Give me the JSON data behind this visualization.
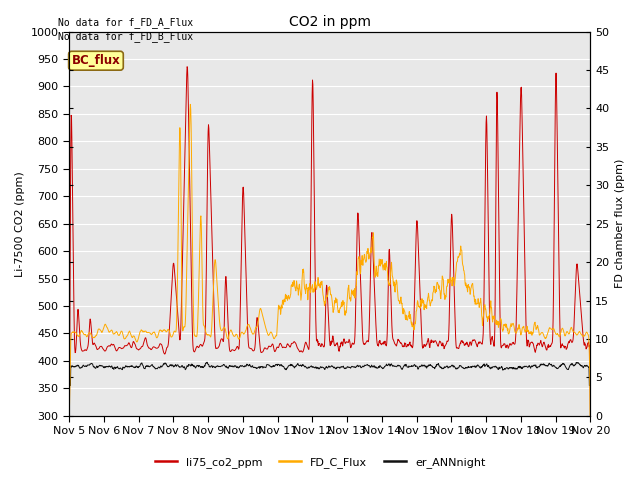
{
  "title": "CO2 in ppm",
  "ylabel_left": "Li-7500 CO2 (ppm)",
  "ylabel_right": "FD chamber flux (ppm)",
  "ylim_left": [
    300,
    1000
  ],
  "ylim_right": [
    0,
    50
  ],
  "background_color": "#e8e8e8",
  "grid_color": "white",
  "note1": "No data for f_FD_A_Flux",
  "note2": "No data for f_FD_B_Flux",
  "bc_flux_label": "BC_flux",
  "legend_entries": [
    "li75_co2_ppm",
    "FD_C_Flux",
    "er_ANNnight"
  ],
  "line_colors": [
    "#cc0000",
    "#ffaa00",
    "#111111"
  ],
  "xtick_labels": [
    "Nov 5",
    "Nov 6",
    "Nov 7",
    "Nov 8",
    "Nov 9",
    "Nov 10",
    "Nov 11",
    "Nov 12",
    "Nov 13",
    "Nov 14",
    "Nov 15",
    "Nov 16",
    "Nov 17",
    "Nov 18",
    "Nov 19",
    "Nov 20"
  ],
  "yticks_left": [
    300,
    350,
    400,
    450,
    500,
    550,
    600,
    650,
    700,
    750,
    800,
    850,
    900,
    950,
    1000
  ],
  "yticks_right": [
    0,
    5,
    10,
    15,
    20,
    25,
    30,
    35,
    40,
    45,
    50
  ]
}
